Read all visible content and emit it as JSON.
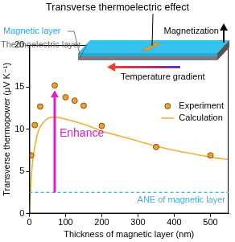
{
  "chart_data": {
    "type": "scatter",
    "x_label": "Thickness of magnetic layer (nm)",
    "y_label": "Transverse thermopower (μV K⁻¹)",
    "xlim": [
      0,
      550
    ],
    "xticks": [
      0,
      100,
      200,
      300,
      400,
      500
    ],
    "ylim": [
      0,
      20
    ],
    "yticks": [
      0,
      5,
      10,
      15,
      20
    ],
    "grid": false,
    "legend": "upper right",
    "series": [
      {
        "name": "Experiment",
        "type": "scatter",
        "marker": "circle",
        "color": "#f39c34",
        "x": [
          5,
          15,
          30,
          70,
          100,
          125,
          150,
          200,
          350,
          500
        ],
        "values": [
          6.9,
          10.5,
          12.7,
          15.2,
          13.8,
          13.4,
          12.8,
          10.4,
          7.9,
          6.9
        ]
      },
      {
        "name": "Calculation",
        "type": "line",
        "line_style": "solid",
        "color": "#f5b030",
        "x": [
          0,
          5,
          10,
          20,
          30,
          45,
          60,
          80,
          100,
          150,
          200,
          250,
          300,
          350,
          400,
          450,
          500,
          550
        ],
        "values": [
          0,
          4.0,
          6.5,
          9.0,
          10.3,
          11.1,
          11.4,
          11.4,
          11.2,
          10.6,
          9.8,
          9.2,
          8.6,
          8.0,
          7.5,
          7.1,
          6.7,
          6.4
        ]
      }
    ],
    "reference_line": {
      "text": "ANE of magnetic layer",
      "y": 2.5,
      "color": "#3fb0e0",
      "line_style": "dashed"
    },
    "annotation": {
      "text": "Enhance",
      "color": "#e020c0"
    }
  },
  "diagram": {
    "title": "Transverse thermoelectric effect",
    "magnetic_layer": "Magnetic layer",
    "thermoelectric_layer": "Thermoelectric layer",
    "magnetization": "Magnetization",
    "temperature_gradient": "Temperature gradient"
  }
}
